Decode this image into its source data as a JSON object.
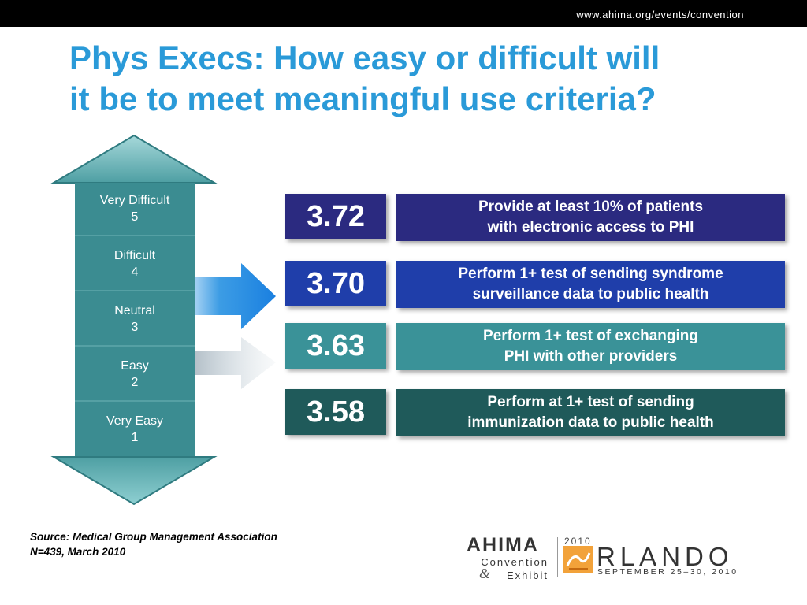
{
  "header": {
    "url": "www.ahima.org/events/convention"
  },
  "title": {
    "line1": "Phys Execs:  How easy or difficult will",
    "line2": "it be to meet meaningful use criteria?"
  },
  "scale": {
    "levels": [
      {
        "label": "Very Difficult",
        "value": "5"
      },
      {
        "label": "Difficult",
        "value": "4"
      },
      {
        "label": "Neutral",
        "value": "3"
      },
      {
        "label": "Easy",
        "value": "2"
      },
      {
        "label": "Very Easy",
        "value": "1"
      }
    ]
  },
  "results": [
    {
      "score": "3.72",
      "line1": "Provide at least 10% of patients",
      "line2": "with electronic access to PHI",
      "color": "#2b2a80"
    },
    {
      "score": "3.70",
      "line1": "Perform 1+ test of sending syndrome",
      "line2": "surveillance data to public health",
      "color": "#1f3eaa"
    },
    {
      "score": "3.63",
      "line1": "Perform 1+ test of exchanging",
      "line2": "PHI with other providers",
      "color": "#3a9298"
    },
    {
      "score": "3.58",
      "line1": "Perform at 1+ test of sending",
      "line2": "immunization data to public health",
      "color": "#1f5a5a"
    }
  ],
  "source": {
    "line1": "Source:  Medical Group Management Association",
    "line2": "N=439,  March 2010"
  },
  "logo": {
    "org": "AHIMA",
    "line1": "Convention",
    "line2": "Exhibit",
    "amp": "&",
    "year": "2010",
    "city": "RLANDO",
    "dates": "SEPTEMBER 25–30, 2010"
  },
  "colors": {
    "title": "#2a9ad8",
    "scale_teal": "#3b8c91",
    "arrow_blue": "#1a8be0",
    "arrow_gray": "#c9d3da"
  }
}
